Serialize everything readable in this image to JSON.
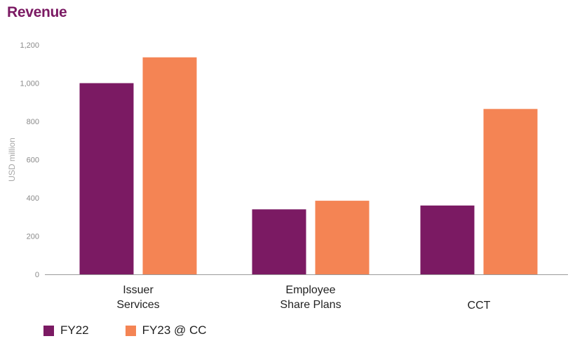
{
  "chart_data": {
    "type": "bar",
    "title": "Revenue",
    "ylabel": "USD million",
    "xlabel": "",
    "ylim": [
      0,
      1200
    ],
    "yticks": [
      0,
      200,
      400,
      600,
      800,
      1000,
      1200
    ],
    "ytick_labels": [
      "0",
      "200",
      "400",
      "600",
      "800",
      "1,000",
      "1,200"
    ],
    "categories": [
      [
        "Issuer",
        "Services"
      ],
      [
        "Employee",
        "Share Plans"
      ],
      [
        "CCT"
      ]
    ],
    "series": [
      {
        "name": "FY22",
        "color": "#7b1a63",
        "values": [
          1000,
          340,
          360
        ]
      },
      {
        "name": "FY23 @ CC",
        "color": "#f48454",
        "values": [
          1135,
          385,
          865
        ]
      }
    ],
    "grid": false,
    "legend_position": "bottom-left"
  }
}
